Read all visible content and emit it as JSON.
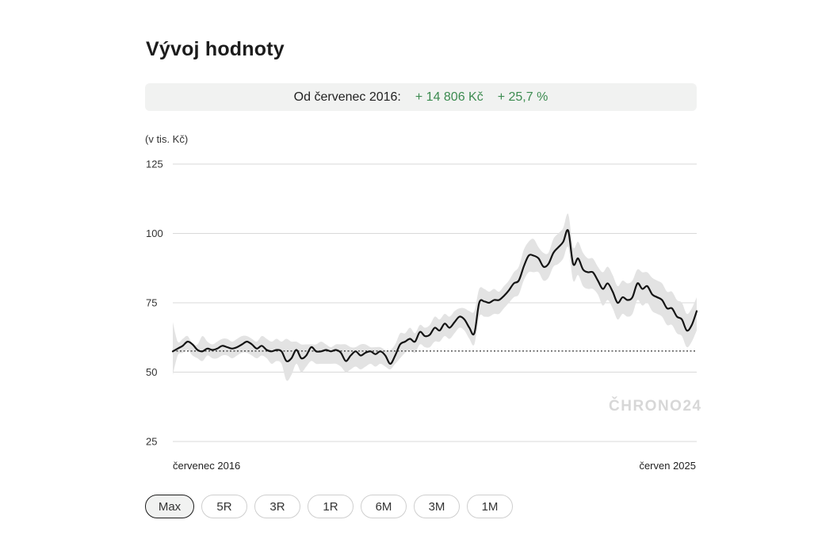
{
  "header": {
    "title": "Vývoj hodnoty"
  },
  "summary": {
    "label": "Od červenec 2016:",
    "abs_change": "+ 14 806 Kč",
    "pct_change": "+ 25,7 %",
    "positive_color": "#3c8b50"
  },
  "watermark": "ČHRONO24",
  "ranges": {
    "selected": "Max",
    "options": [
      "Max",
      "5R",
      "3R",
      "1R",
      "6M",
      "3M",
      "1M"
    ]
  },
  "chart_data": {
    "type": "line",
    "ylabel": "(v tis. Kč)",
    "ylim": [
      25,
      125
    ],
    "yticks": [
      125,
      100,
      75,
      50,
      25
    ],
    "x_start_label": "červenec 2016",
    "x_end_label": "červen 2025",
    "grid": true,
    "reference_line": 57.6,
    "series": [
      {
        "values": [
          57.5,
          58.5,
          59.5,
          61,
          60,
          58,
          57.5,
          58.5,
          58,
          58.5,
          59.5,
          59,
          58.5,
          59,
          60,
          61,
          60,
          58.5,
          59.5,
          58,
          57.5,
          58,
          57.5,
          54,
          55,
          58,
          55,
          56,
          59,
          57.5,
          57.5,
          58,
          57.5,
          58,
          57,
          54,
          56,
          57.5,
          56,
          57,
          57.5,
          56.5,
          57.5,
          56,
          53,
          56,
          60,
          61,
          62,
          61,
          64.5,
          63,
          63.5,
          66,
          65,
          67.5,
          66,
          68,
          70,
          69,
          66,
          64,
          75,
          75.5,
          75,
          76,
          76,
          77.5,
          79.5,
          82,
          83,
          88,
          92,
          92,
          91,
          88,
          89,
          93,
          95,
          97,
          101,
          89,
          91,
          87,
          86,
          86,
          83,
          80,
          82,
          79,
          75,
          77,
          76,
          77,
          82,
          80,
          81,
          78,
          77,
          76,
          73,
          73,
          70,
          69,
          65,
          67,
          72
        ],
        "band_upper": [
          68,
          61,
          62,
          63,
          60,
          60,
          63,
          61,
          60,
          61,
          62,
          62,
          61,
          62,
          63,
          63,
          62,
          61,
          63,
          62,
          61,
          62,
          61,
          62,
          61,
          61,
          60,
          60,
          60,
          60,
          61,
          60,
          59,
          60,
          60,
          60,
          59,
          59,
          60,
          60,
          59,
          59,
          59,
          58,
          58,
          60,
          64,
          64,
          66,
          64,
          67,
          66,
          67,
          70,
          69,
          71,
          70,
          72,
          73,
          73,
          72,
          72,
          80,
          80,
          79,
          80,
          79,
          81,
          83,
          86,
          88,
          94,
          97,
          98,
          95,
          93,
          93,
          98,
          100,
          102,
          107,
          95,
          97,
          93,
          91,
          91,
          88,
          86,
          88,
          85,
          81,
          83,
          82,
          83,
          87,
          86,
          86,
          84,
          83,
          82,
          79,
          79,
          76,
          75,
          71,
          73,
          77
        ],
        "band_lower": [
          49,
          56,
          57,
          58,
          56,
          55,
          54,
          56,
          55,
          55,
          56,
          56,
          55,
          56,
          57,
          57,
          56,
          55,
          56,
          55,
          53,
          54,
          53,
          47,
          49,
          53,
          50,
          52,
          54,
          53,
          53,
          53,
          53,
          53,
          52,
          50,
          51,
          52,
          51,
          52,
          53,
          52,
          53,
          52,
          51,
          53,
          55,
          57,
          58,
          57,
          60,
          59,
          59,
          61,
          61,
          63,
          62,
          64,
          66,
          65,
          62,
          60,
          70,
          70,
          70,
          71,
          71,
          73,
          75,
          77,
          78,
          83,
          86,
          86,
          86,
          83,
          84,
          88,
          89,
          91,
          95,
          83,
          85,
          81,
          80,
          80,
          78,
          74,
          76,
          73,
          69,
          71,
          70,
          71,
          76,
          74,
          75,
          72,
          71,
          70,
          67,
          67,
          64,
          63,
          59,
          61,
          65
        ]
      }
    ]
  }
}
